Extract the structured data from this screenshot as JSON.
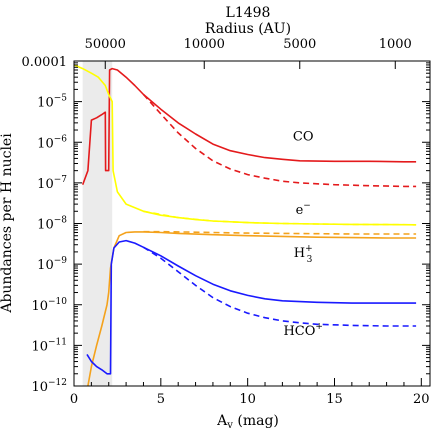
{
  "chart_data": {
    "type": "line",
    "title": "L1498",
    "xlabel": "A_v (mag)",
    "xlabel_main": "A",
    "xlabel_sub": "v",
    "xlabel_rest": " (mag)",
    "ylabel": "Abundances per H nuclei",
    "top_axis_label": "Radius (AU)",
    "xlim": [
      0,
      20.5
    ],
    "ylim": [
      1e-12,
      0.0001
    ],
    "y_scale": "log",
    "grid": false,
    "x_ticks": [
      {
        "value": 0,
        "label": "0"
      },
      {
        "value": 5,
        "label": "5"
      },
      {
        "value": 10,
        "label": "10"
      },
      {
        "value": 15,
        "label": "15"
      },
      {
        "value": 20,
        "label": "20"
      }
    ],
    "y_ticks": [
      {
        "exp": -4,
        "label": "0.0001"
      },
      {
        "exp": -5,
        "label": "10",
        "sup": "−5"
      },
      {
        "exp": -6,
        "label": "10",
        "sup": "−6"
      },
      {
        "exp": -7,
        "label": "10",
        "sup": "−7"
      },
      {
        "exp": -8,
        "label": "10",
        "sup": "−8"
      },
      {
        "exp": -9,
        "label": "10",
        "sup": "−9"
      },
      {
        "exp": -10,
        "label": "10",
        "sup": "−10"
      },
      {
        "exp": -11,
        "label": "10",
        "sup": "−11"
      },
      {
        "exp": -12,
        "label": "10",
        "sup": "−12"
      }
    ],
    "top_ticks": [
      {
        "av": 1.8,
        "label": "50000"
      },
      {
        "av": 7.5,
        "label": "10000"
      },
      {
        "av": 13.0,
        "label": "5000"
      },
      {
        "av": 18.5,
        "label": "1000"
      }
    ],
    "shaded_region": {
      "x0": 0.5,
      "x1": 2.2,
      "color": "#ebebeb"
    },
    "colors": {
      "CO": "#e41a1c",
      "e": "#ffff00",
      "H3": "#f4a21c",
      "HCO": "#1a1aff"
    },
    "series": [
      {
        "name": "CO",
        "style": "solid",
        "color": "#e41a1c",
        "x": [
          0.5,
          0.8,
          1.0,
          1.3,
          1.6,
          1.8,
          1.82,
          2.0,
          2.05,
          2.2,
          2.5,
          3.0,
          3.5,
          4.0,
          5.0,
          6.0,
          7.0,
          8.0,
          9.0,
          10.0,
          11.0,
          12.0,
          13.0,
          15.0,
          17.0,
          19.0,
          19.7
        ],
        "y": [
          9e-08,
          2e-07,
          3.5e-06,
          4e-06,
          4.8e-06,
          5.5e-06,
          2e-07,
          2e-07,
          6e-05,
          6.5e-05,
          6e-05,
          4e-05,
          2.5e-05,
          1.5e-05,
          6.5e-06,
          3e-06,
          1.6e-06,
          9e-07,
          6.2e-07,
          5e-07,
          4.2e-07,
          3.8e-07,
          3.5e-07,
          3.4e-07,
          3.4e-07,
          3.3e-07,
          3.3e-07
        ]
      },
      {
        "name": "CO (dashed)",
        "style": "dashed",
        "color": "#e41a1c",
        "x": [
          4.0,
          5.0,
          6.0,
          7.0,
          8.0,
          9.0,
          10.0,
          11.0,
          12.0,
          13.0,
          14.0,
          15.0,
          17.0,
          19.0,
          19.7
        ],
        "y": [
          1.5e-05,
          5e-06,
          1.7e-06,
          7e-07,
          3.5e-07,
          2.2e-07,
          1.6e-07,
          1.3e-07,
          1.1e-07,
          1e-07,
          9.5e-08,
          9e-08,
          8.5e-08,
          8.2e-08,
          8.2e-08
        ]
      },
      {
        "name": "e⁻",
        "style": "solid",
        "color": "#ffff00",
        "x": [
          0.0,
          0.5,
          1.0,
          1.4,
          1.8,
          2.0,
          2.2,
          2.25,
          2.5,
          3.0,
          4.0,
          5.0,
          6.0,
          7.0,
          8.0,
          10.0,
          12.0,
          14.0,
          16.0,
          18.0,
          19.7
        ],
        "y": [
          8e-05,
          6.5e-05,
          5e-05,
          4e-05,
          2.5e-05,
          1.5e-05,
          1e-05,
          2e-07,
          6e-08,
          3e-08,
          2e-08,
          1.6e-08,
          1.4e-08,
          1.25e-08,
          1.15e-08,
          1.05e-08,
          1e-08,
          9.7e-09,
          9.5e-09,
          9.4e-09,
          9.3e-09
        ]
      },
      {
        "name": "e⁻ (dashed)",
        "style": "dashed",
        "color": "#ffff00",
        "x": [
          4.0,
          6.0,
          8.0,
          10.0,
          12.0,
          14.0,
          16.0,
          18.0,
          19.7
        ],
        "y": [
          2e-08,
          1.4e-08,
          1.15e-08,
          1.05e-08,
          1e-08,
          9.7e-09,
          9.5e-09,
          9.4e-09,
          9.3e-09
        ]
      },
      {
        "name": "H₃⁺",
        "style": "solid",
        "color": "#f4a21c",
        "x": [
          0.8,
          1.0,
          1.3,
          1.6,
          1.9,
          2.0,
          2.1,
          2.3,
          2.6,
          3.0,
          3.5,
          4.0,
          5.0,
          6.0,
          8.0,
          10.0,
          12.0,
          14.0,
          16.0,
          18.0,
          19.7
        ],
        "y": [
          1e-12,
          3e-12,
          1e-11,
          3e-11,
          1e-10,
          2e-10,
          8e-10,
          2.5e-09,
          5e-09,
          6e-09,
          6.2e-09,
          6.2e-09,
          6e-09,
          5.7e-09,
          5.3e-09,
          5e-09,
          4.8e-09,
          4.6e-09,
          4.5e-09,
          4.4e-09,
          4.4e-09
        ]
      },
      {
        "name": "H₃⁺ (dashed)",
        "style": "dashed",
        "color": "#f4a21c",
        "x": [
          4.0,
          5.0,
          6.0,
          8.0,
          10.0,
          12.0,
          14.0,
          16.0,
          18.0,
          19.7
        ],
        "y": [
          6.3e-09,
          6.3e-09,
          6.2e-09,
          6e-09,
          5.8e-09,
          5.7e-09,
          5.6e-09,
          5.5e-09,
          5.5e-09,
          5.5e-09
        ]
      },
      {
        "name": "HCO⁺",
        "style": "solid",
        "color": "#1a1aff",
        "x": [
          0.75,
          1.0,
          1.3,
          1.6,
          1.9,
          2.1,
          2.15,
          2.3,
          2.6,
          3.0,
          3.5,
          4.0,
          5.0,
          6.0,
          7.0,
          8.0,
          9.0,
          10.0,
          11.0,
          12.0,
          14.0,
          16.0,
          18.0,
          19.7
        ],
        "y": [
          6e-12,
          4e-12,
          3e-12,
          2.5e-12,
          2e-12,
          2e-12,
          1e-09,
          2.5e-09,
          3.5e-09,
          3.8e-09,
          3.3e-09,
          2.6e-09,
          1.6e-09,
          9e-10,
          5.2e-10,
          3.2e-10,
          2.2e-10,
          1.7e-10,
          1.4e-10,
          1.25e-10,
          1.15e-10,
          1.1e-10,
          1.1e-10,
          1.1e-10
        ]
      },
      {
        "name": "HCO⁺ (dashed)",
        "style": "dashed",
        "color": "#1a1aff",
        "x": [
          4.0,
          5.0,
          6.0,
          7.0,
          8.0,
          9.0,
          10.0,
          11.0,
          12.0,
          13.0,
          14.0,
          16.0,
          18.0,
          19.7
        ],
        "y": [
          2.6e-09,
          1.4e-09,
          6.5e-10,
          3e-10,
          1.5e-10,
          9e-11,
          6.2e-11,
          4.8e-11,
          4e-11,
          3.6e-11,
          3.3e-11,
          3.1e-11,
          3e-11,
          3e-11
        ]
      }
    ],
    "series_labels": [
      {
        "key": "co",
        "text": "CO",
        "x": 13.2,
        "y": 1.1e-06
      },
      {
        "key": "e",
        "text": "e",
        "sup": "−",
        "x": 13.2,
        "y": 1.7e-08
      },
      {
        "key": "h3",
        "text": "H",
        "sub": "3",
        "sup": "+",
        "x": 13.2,
        "y": 1.5e-09
      },
      {
        "key": "hco",
        "text": "HCO",
        "sup": "+",
        "x": 13.2,
        "y": 1.8e-11
      }
    ]
  }
}
